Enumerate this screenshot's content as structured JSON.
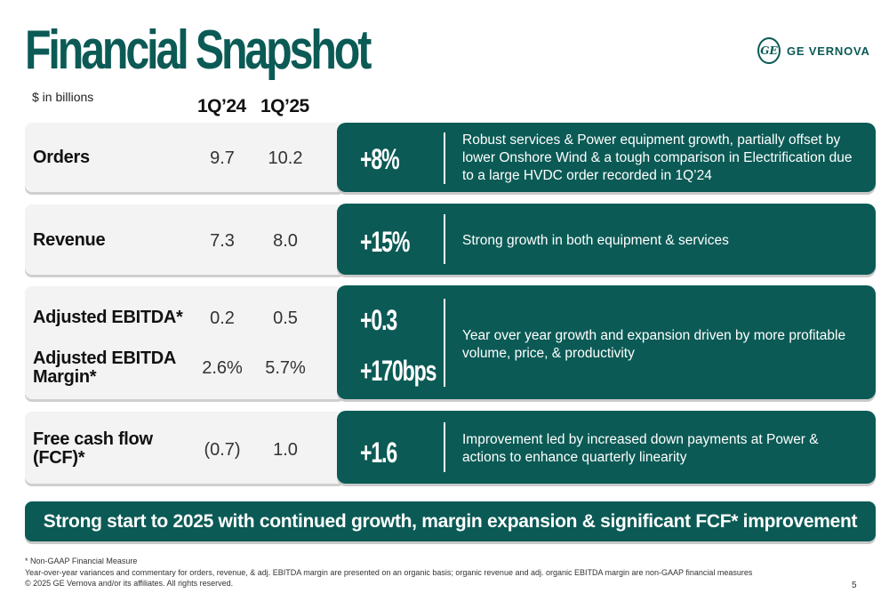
{
  "header": {
    "title": "Financial Snapshot",
    "units": "$ in billions",
    "col1": "1Q’24",
    "col2": "1Q’25"
  },
  "logo": {
    "text": "GE VERNOVA",
    "mark": "GE",
    "icon": "ge-monogram-icon"
  },
  "rows": {
    "orders": {
      "label": "Orders",
      "q124": "9.7",
      "q125": "10.2",
      "delta": "+8%",
      "comment": "Robust services & Power equipment growth, partially offset by lower Onshore Wind & a tough comparison in Electrification due to a large HVDC order recorded in 1Q’24"
    },
    "revenue": {
      "label": "Revenue",
      "q124": "7.3",
      "q125": "8.0",
      "delta": "+15%",
      "comment": "Strong growth in both equipment & services"
    },
    "ebitda": {
      "label": "Adjusted EBITDA*",
      "q124": "0.2",
      "q125": "0.5",
      "delta": "+0.3",
      "margin_label": "Adjusted EBITDA Margin*",
      "margin_q124": "2.6%",
      "margin_q125": "5.7%",
      "margin_delta": "+170bps",
      "comment": "Year over year growth and expansion driven by more profitable volume, price, & productivity"
    },
    "fcf": {
      "label": "Free cash flow (FCF)*",
      "q124": "(0.7)",
      "q125": "1.0",
      "delta": "+1.6",
      "comment": "Improvement led by increased down payments at Power & actions to enhance quarterly linearity"
    }
  },
  "banner": "Strong start to 2025 with continued growth, margin expansion & significant FCF* improvement",
  "footer": {
    "note1": "* Non-GAAP Financial Measure",
    "note2": "Year-over-year variances and commentary for orders, revenue, & adj. EBITDA margin are presented on an organic basis; organic revenue and adj. organic EBITDA margin are non-GAAP financial measures",
    "copyright": "© 2025 GE Vernova and/or its affiliates. All rights reserved.",
    "page": "5"
  },
  "colors": {
    "brand": "#0b5a55",
    "row_bg": "#f3f3f3"
  }
}
